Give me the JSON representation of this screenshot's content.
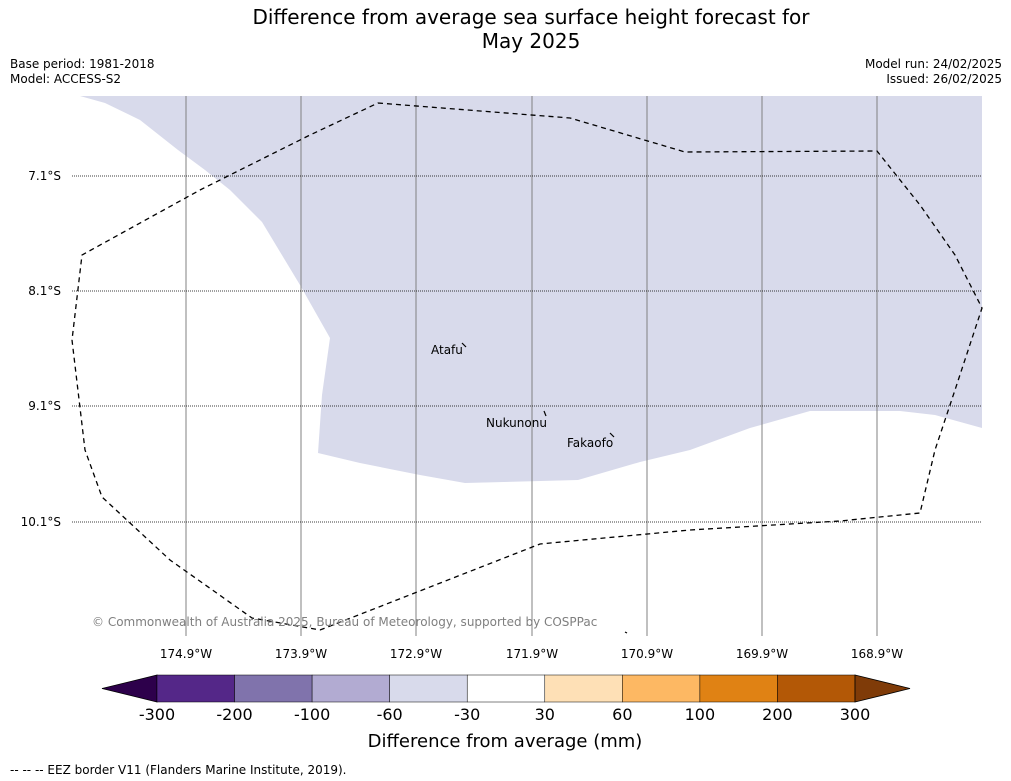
{
  "title_line1": "Difference from average sea surface height forecast for",
  "title_line2": "May 2025",
  "base_period": "Base period: 1981-2018",
  "model": "Model: ACCESS-S2",
  "model_run": "Model run: 24/02/2025",
  "issued": "Issued: 26/02/2025",
  "latitudes": [
    "7.1°S",
    "8.1°S",
    "9.1°S",
    "10.1°S"
  ],
  "longitudes": [
    "174.9°W",
    "173.9°W",
    "172.9°W",
    "171.9°W",
    "170.9°W",
    "169.9°W",
    "168.9°W"
  ],
  "places": [
    {
      "name": "Atafu"
    },
    {
      "name": "Nukunonu"
    },
    {
      "name": "Fakaofo"
    }
  ],
  "copyright": "© Commonwealth of Australia 2025, Bureau of Meteorology, supported by COSPPac",
  "colorbar": {
    "ticks": [
      "-300",
      "-200",
      "-100",
      "-60",
      "-30",
      "30",
      "60",
      "100",
      "200",
      "300"
    ],
    "colors": [
      "#2d004b",
      "#542788",
      "#8073ac",
      "#b2abd2",
      "#d8daeb",
      "#ffffff",
      "#fee0b6",
      "#fdb863",
      "#e08214",
      "#b35806",
      "#7f3b08"
    ],
    "label": "Difference from average (mm)"
  },
  "anomaly_fill_color": "#d8daeb",
  "footer": "--  --  -- EEZ border V11 (Flanders Marine Institute, 2019)."
}
